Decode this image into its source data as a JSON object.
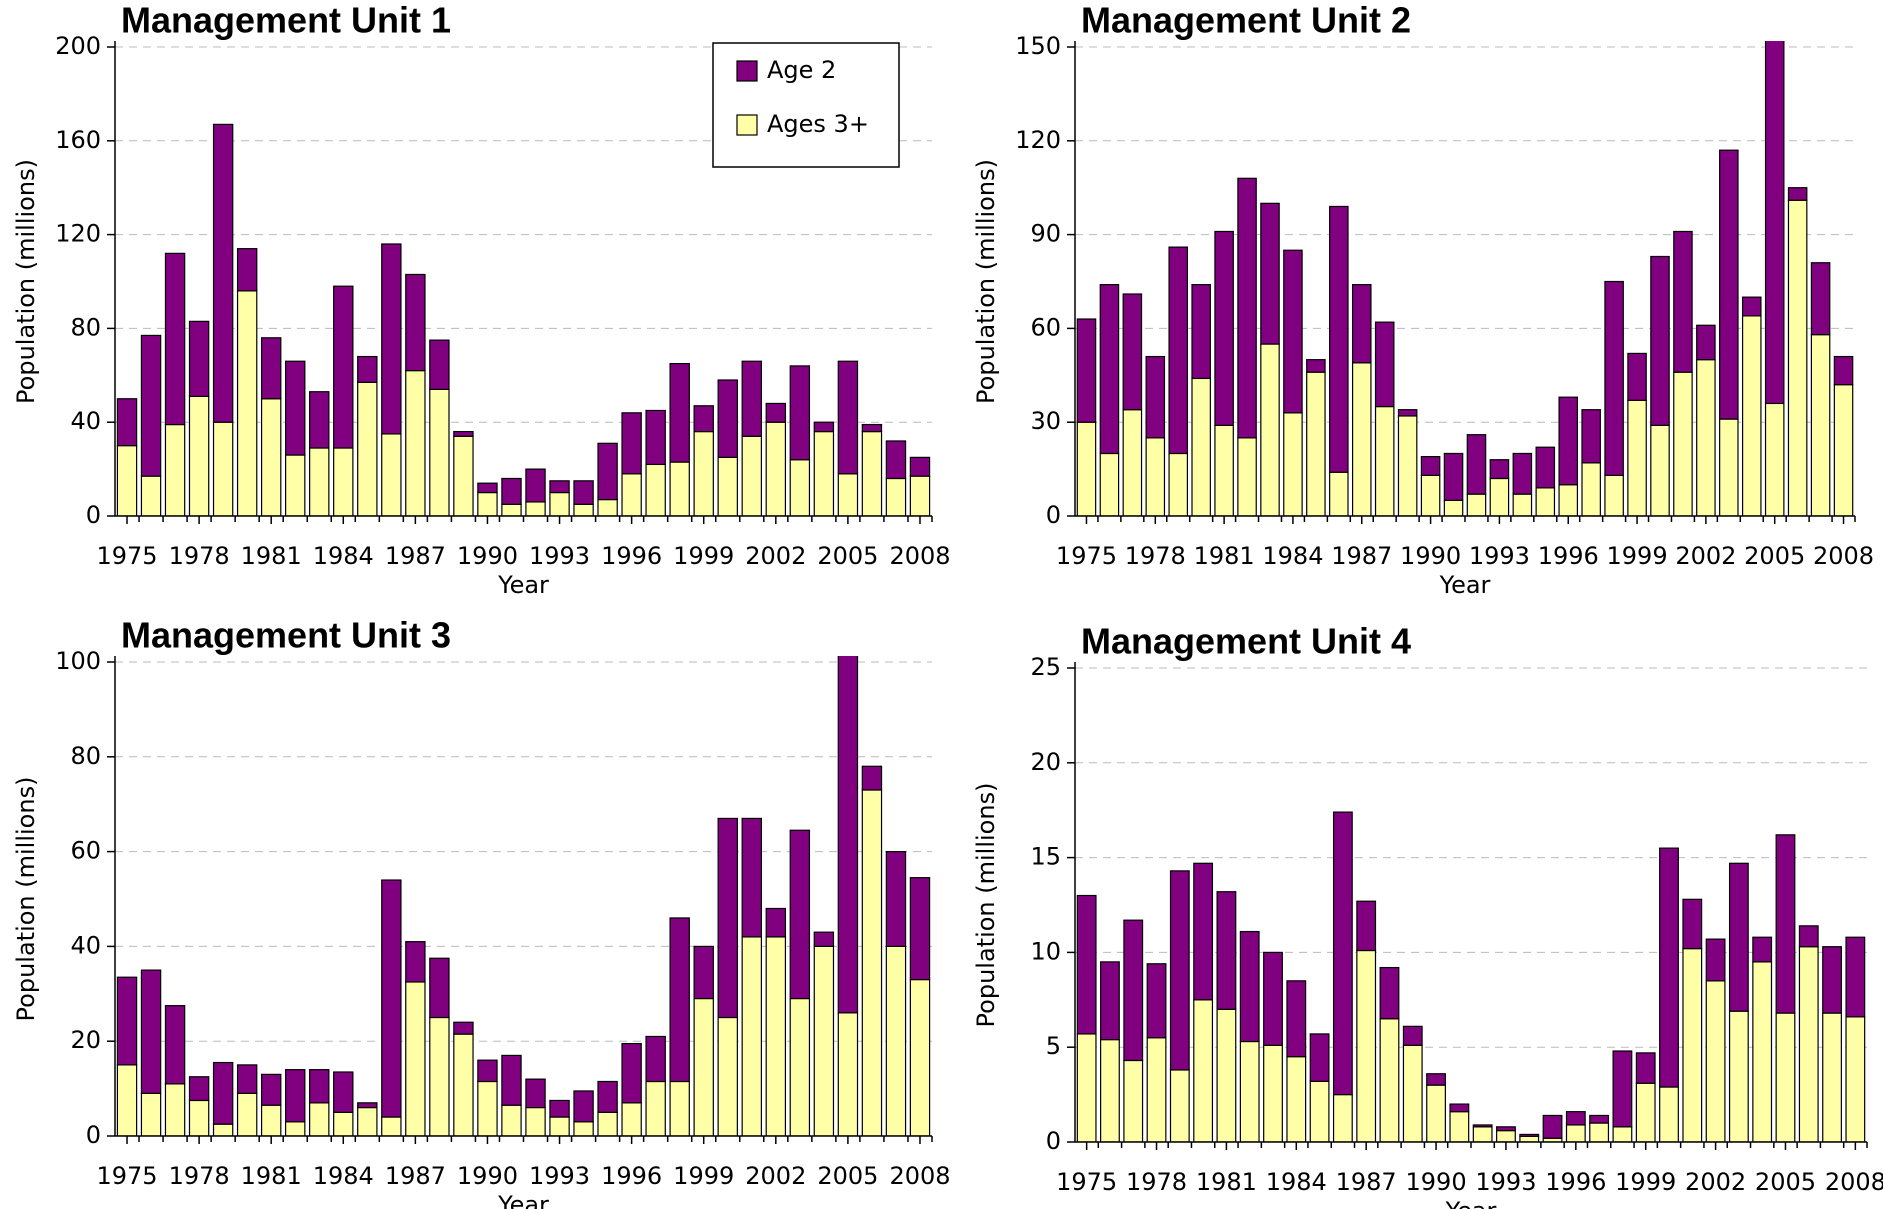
{
  "chart_data": [
    {
      "type": "bar",
      "stacked": true,
      "title": "Management Unit 1",
      "xlabel": "Year",
      "ylabel": "Population (millions)",
      "x": [
        1975,
        1976,
        1977,
        1978,
        1979,
        1980,
        1981,
        1982,
        1983,
        1984,
        1985,
        1986,
        1987,
        1988,
        1989,
        1990,
        1991,
        1992,
        1993,
        1994,
        1995,
        1996,
        1997,
        1998,
        1999,
        2000,
        2001,
        2002,
        2003,
        2004,
        2005,
        2006,
        2007,
        2008
      ],
      "xlim": [
        1974.5,
        2008.5
      ],
      "xticks": [
        1975,
        1978,
        1981,
        1984,
        1987,
        1990,
        1993,
        1996,
        1999,
        2002,
        2005,
        2008
      ],
      "ylim": [
        0,
        200
      ],
      "yticks": [
        0,
        40,
        80,
        120,
        160,
        200
      ],
      "grid": true,
      "legend": "upper right",
      "series": [
        {
          "name": "Ages 3+",
          "color": "#ffffa8",
          "values": [
            30,
            17,
            39,
            51,
            40,
            96,
            50,
            26,
            29,
            29,
            57,
            35,
            62,
            54,
            34,
            10,
            5,
            6,
            10,
            5,
            7,
            18,
            22,
            23,
            36,
            25,
            34,
            40,
            24,
            36,
            18,
            36,
            16,
            17
          ]
        },
        {
          "name": "Age 2",
          "color": "#800080",
          "values": [
            20,
            60,
            73,
            32,
            127,
            18,
            26,
            40,
            24,
            69,
            11,
            81,
            41,
            21,
            2,
            4,
            11,
            14,
            5,
            10,
            24,
            26,
            23,
            42,
            11,
            33,
            32,
            8,
            40,
            4,
            48,
            3,
            16,
            8
          ]
        }
      ]
    },
    {
      "type": "bar",
      "stacked": true,
      "title": "Management Unit 2",
      "xlabel": "Year",
      "ylabel": "Population (millions)",
      "x": [
        1975,
        1976,
        1977,
        1978,
        1979,
        1980,
        1981,
        1982,
        1983,
        1984,
        1985,
        1986,
        1987,
        1988,
        1989,
        1990,
        1991,
        1992,
        1993,
        1994,
        1995,
        1996,
        1997,
        1998,
        1999,
        2000,
        2001,
        2002,
        2003,
        2004,
        2005,
        2006,
        2007,
        2008
      ],
      "xlim": [
        1974.5,
        2008.5
      ],
      "xticks": [
        1975,
        1978,
        1981,
        1984,
        1987,
        1990,
        1993,
        1996,
        1999,
        2002,
        2005,
        2008
      ],
      "ylim": [
        0,
        150
      ],
      "yticks": [
        0,
        30,
        60,
        90,
        120,
        150
      ],
      "grid": true,
      "series": [
        {
          "color": "#ffffa8",
          "values": [
            30,
            20,
            34,
            25,
            20,
            44,
            29,
            25,
            55,
            33,
            46,
            14,
            49,
            35,
            32,
            13,
            5,
            7,
            12,
            7,
            9,
            10,
            17,
            13,
            37,
            29,
            46,
            50,
            31,
            64,
            36,
            101,
            58,
            42
          ]
        },
        {
          "color": "#800080",
          "values": [
            33,
            54,
            37,
            26,
            66,
            30,
            62,
            83,
            45,
            52,
            4,
            85,
            25,
            27,
            2,
            6,
            15,
            19,
            6,
            13,
            13,
            28,
            17,
            62,
            15,
            54,
            45,
            11,
            86,
            6,
            117,
            4,
            23,
            9
          ]
        }
      ]
    },
    {
      "type": "bar",
      "stacked": true,
      "title": "Management Unit 3",
      "xlabel": "Year",
      "ylabel": "Population (millions)",
      "x": [
        1975,
        1976,
        1977,
        1978,
        1979,
        1980,
        1981,
        1982,
        1983,
        1984,
        1985,
        1986,
        1987,
        1988,
        1989,
        1990,
        1991,
        1992,
        1993,
        1994,
        1995,
        1996,
        1997,
        1998,
        1999,
        2000,
        2001,
        2002,
        2003,
        2004,
        2005,
        2006,
        2007,
        2008
      ],
      "xlim": [
        1974.5,
        2008.5
      ],
      "xticks": [
        1975,
        1978,
        1981,
        1984,
        1987,
        1990,
        1993,
        1996,
        1999,
        2002,
        2005,
        2008
      ],
      "ylim": [
        0,
        100
      ],
      "yticks": [
        0,
        20,
        40,
        60,
        80,
        100
      ],
      "grid": true,
      "series": [
        {
          "color": "#ffffa8",
          "values": [
            15,
            9,
            11,
            7.5,
            2.5,
            9,
            6.5,
            3,
            7,
            5,
            6,
            4,
            32.5,
            25,
            21.5,
            11.5,
            6.5,
            6,
            4,
            3,
            5,
            7,
            11.5,
            11.5,
            29,
            25,
            42,
            42,
            29,
            40,
            26,
            73,
            40,
            33
          ]
        },
        {
          "color": "#800080",
          "values": [
            18.5,
            26,
            16.5,
            5,
            13,
            6,
            6.5,
            11,
            7,
            8.5,
            1,
            50,
            8.5,
            12.5,
            2.5,
            4.5,
            10.5,
            6,
            3.5,
            6.5,
            6.5,
            12.5,
            9.5,
            34.5,
            11,
            42,
            25,
            6,
            35.5,
            3,
            76,
            5,
            20,
            21.5
          ]
        }
      ]
    },
    {
      "type": "bar",
      "stacked": true,
      "title": "Management Unit 4",
      "xlabel": "Year",
      "ylabel": "Population (millions)",
      "x": [
        1975,
        1976,
        1977,
        1978,
        1979,
        1980,
        1981,
        1982,
        1983,
        1984,
        1985,
        1986,
        1987,
        1988,
        1989,
        1990,
        1991,
        1992,
        1993,
        1994,
        1995,
        1996,
        1997,
        1998,
        1999,
        2000,
        2001,
        2002,
        2003,
        2004,
        2005,
        2006,
        2007,
        2008
      ],
      "xlim": [
        1974.5,
        2008.5
      ],
      "xticks": [
        1975,
        1978,
        1981,
        1984,
        1987,
        1990,
        1993,
        1996,
        1999,
        2002,
        2005,
        2008
      ],
      "ylim": [
        0,
        25
      ],
      "yticks": [
        0,
        5,
        10,
        15,
        20,
        25
      ],
      "grid": true,
      "series": [
        {
          "color": "#ffffa8",
          "values": [
            5.7,
            5.4,
            4.3,
            5.5,
            3.8,
            7.5,
            7,
            5.3,
            5.1,
            4.5,
            3.2,
            2.5,
            10.1,
            6.5,
            5.1,
            3,
            1.6,
            0.8,
            0.6,
            0.3,
            0.2,
            0.9,
            1,
            0.8,
            3.1,
            2.9,
            10.2,
            8.5,
            6.9,
            9.5,
            6.8,
            10.3,
            6.8,
            6.6
          ]
        },
        {
          "color": "#800080",
          "values": [
            7.3,
            4.1,
            7.4,
            3.9,
            10.5,
            7.2,
            6.2,
            5.8,
            4.9,
            4,
            2.5,
            14.9,
            2.6,
            2.7,
            1,
            0.6,
            0.4,
            0.1,
            0.2,
            0.1,
            1.2,
            0.7,
            0.4,
            4,
            1.6,
            12.6,
            2.6,
            2.2,
            7.8,
            1.3,
            9.4,
            1.1,
            3.5,
            4.2
          ]
        }
      ]
    }
  ]
}
